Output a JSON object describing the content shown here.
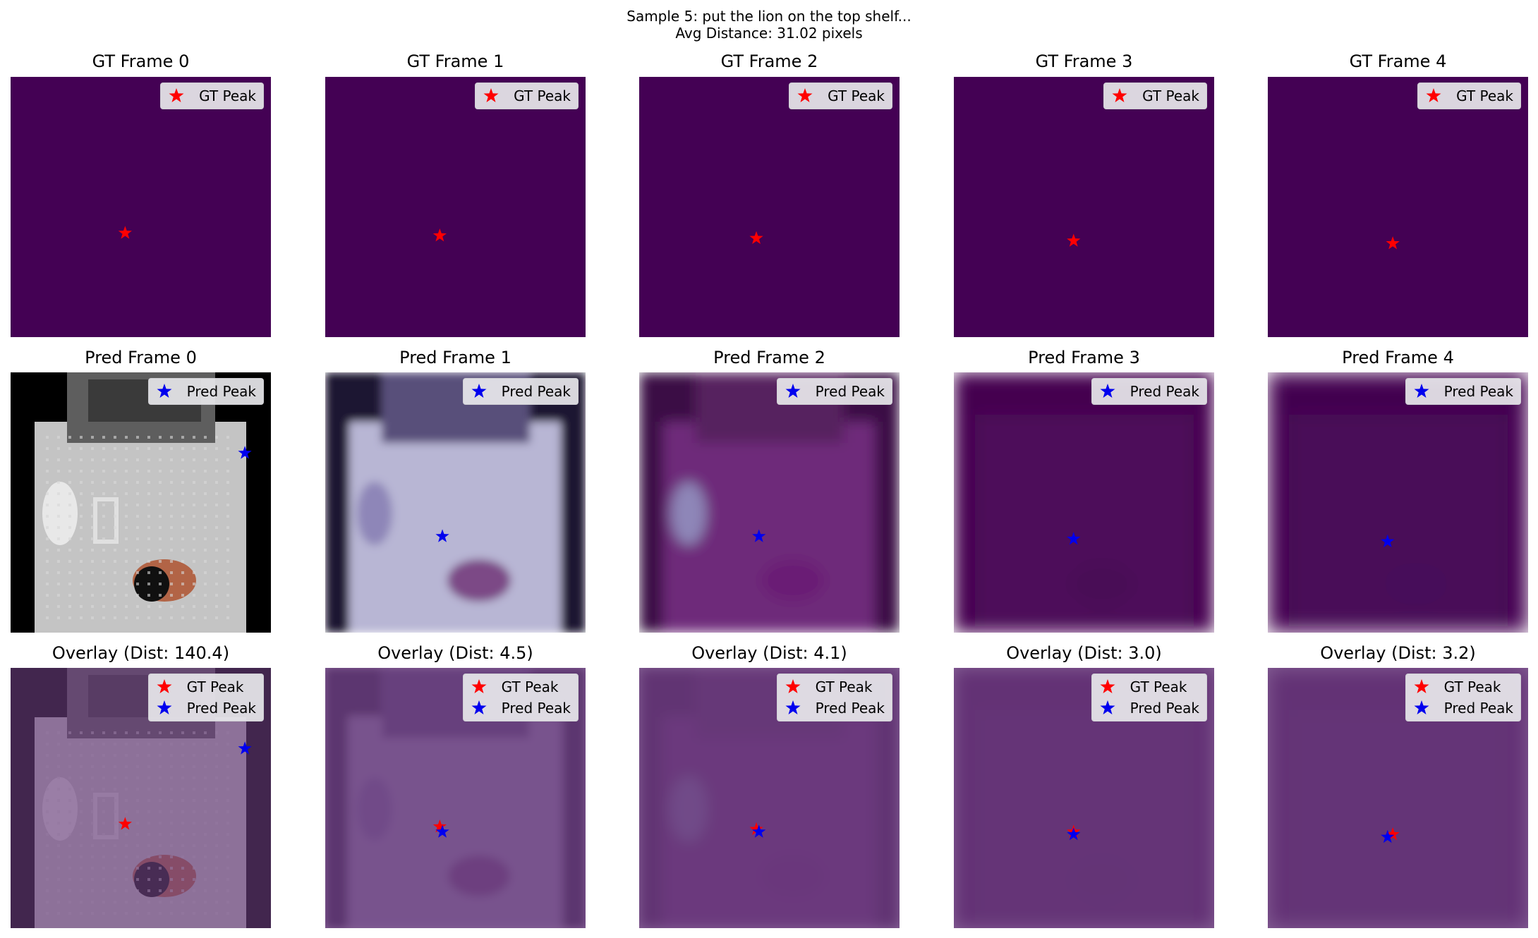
{
  "figure": {
    "title_line1": "Sample 5: put the lion on the top shelf...",
    "title_line2": "Avg Distance: 31.02 pixels"
  },
  "legend": {
    "gt_label": "GT Peak",
    "pred_label": "Pred Peak",
    "gt_color": "#ff0000",
    "pred_color": "#0000ee",
    "marker": "star"
  },
  "colors": {
    "gt_background": "#440154",
    "overlay_tint": "#6a3d7e"
  },
  "rows": [
    {
      "row": "gt",
      "panels": [
        {
          "title": "GT Frame 0",
          "gt_peak": [
            0.44,
            0.6
          ]
        },
        {
          "title": "GT Frame 1",
          "gt_peak": [
            0.44,
            0.61
          ]
        },
        {
          "title": "GT Frame 2",
          "gt_peak": [
            0.45,
            0.62
          ]
        },
        {
          "title": "GT Frame 3",
          "gt_peak": [
            0.46,
            0.63
          ]
        },
        {
          "title": "GT Frame 4",
          "gt_peak": [
            0.48,
            0.64
          ]
        }
      ]
    },
    {
      "row": "pred",
      "panels": [
        {
          "title": "Pred Frame 0",
          "pred_peak": [
            0.9,
            0.31
          ]
        },
        {
          "title": "Pred Frame 1",
          "pred_peak": [
            0.45,
            0.63
          ]
        },
        {
          "title": "Pred Frame 2",
          "pred_peak": [
            0.46,
            0.63
          ]
        },
        {
          "title": "Pred Frame 3",
          "pred_peak": [
            0.46,
            0.64
          ]
        },
        {
          "title": "Pred Frame 4",
          "pred_peak": [
            0.46,
            0.65
          ]
        }
      ]
    },
    {
      "row": "overlay",
      "panels": [
        {
          "title": "Overlay (Dist: 140.4)",
          "gt_peak": [
            0.44,
            0.6
          ],
          "pred_peak": [
            0.9,
            0.31
          ]
        },
        {
          "title": "Overlay (Dist: 4.5)",
          "gt_peak": [
            0.44,
            0.61
          ],
          "pred_peak": [
            0.45,
            0.63
          ]
        },
        {
          "title": "Overlay (Dist: 4.1)",
          "gt_peak": [
            0.45,
            0.62
          ],
          "pred_peak": [
            0.46,
            0.63
          ]
        },
        {
          "title": "Overlay (Dist: 3.0)",
          "gt_peak": [
            0.46,
            0.63
          ],
          "pred_peak": [
            0.46,
            0.64
          ]
        },
        {
          "title": "Overlay (Dist: 3.2)",
          "gt_peak": [
            0.48,
            0.64
          ],
          "pred_peak": [
            0.46,
            0.65
          ]
        }
      ]
    }
  ]
}
